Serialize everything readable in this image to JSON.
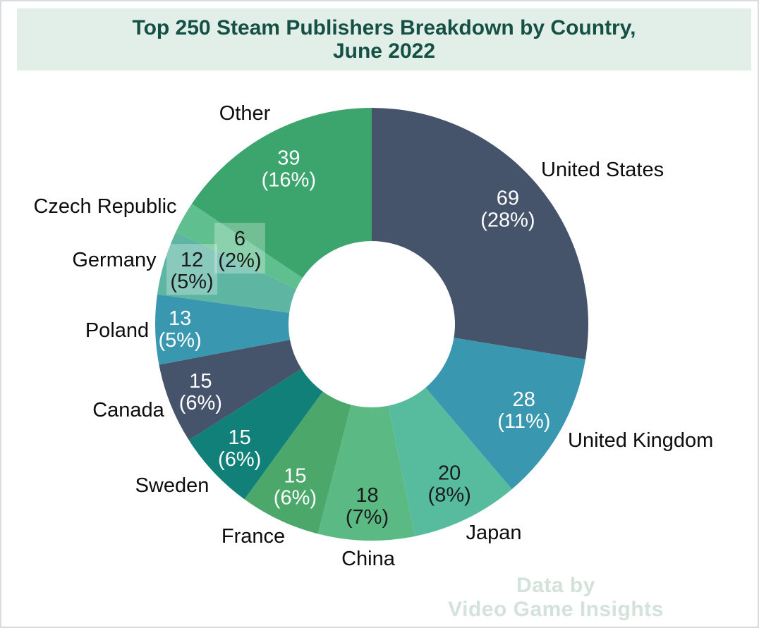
{
  "header": {
    "line1": "Top 250 Steam Publishers Breakdown by Country,",
    "line2": "June 2022",
    "bg_color": "#e2efe9",
    "text_color": "#155045"
  },
  "watermark": {
    "line1": "Data by",
    "line2": "Video Game Insights",
    "color": "#d3e2da"
  },
  "chart_data": {
    "type": "pie",
    "subtype": "donut",
    "title": "Top 250 Steam Publishers Breakdown by Country, June 2022",
    "total": 250,
    "start_angle_deg": 0,
    "direction": "clockwise",
    "legend_position": "outside-labels",
    "slices": [
      {
        "label": "United States",
        "value": 69,
        "pct": 28,
        "color": "#45536b",
        "value_text_color": "#ffffff"
      },
      {
        "label": "United Kingdom",
        "value": 28,
        "pct": 11,
        "color": "#3a97b0",
        "value_text_color": "#ffffff"
      },
      {
        "label": "Japan",
        "value": 20,
        "pct": 8,
        "color": "#56bc9d",
        "value_text_color": "#1a1a1a"
      },
      {
        "label": "China",
        "value": 18,
        "pct": 7,
        "color": "#5bba84",
        "value_text_color": "#1a1a1a"
      },
      {
        "label": "France",
        "value": 15,
        "pct": 6,
        "color": "#4ca76b",
        "value_text_color": "#ffffff"
      },
      {
        "label": "Sweden",
        "value": 15,
        "pct": 6,
        "color": "#108078",
        "value_text_color": "#ffffff"
      },
      {
        "label": "Canada",
        "value": 15,
        "pct": 6,
        "color": "#45536b",
        "value_text_color": "#ffffff"
      },
      {
        "label": "Poland",
        "value": 13,
        "pct": 5,
        "color": "#3a97b0",
        "value_text_color": "#ffffff"
      },
      {
        "label": "Germany",
        "value": 12,
        "pct": 5,
        "color": "#5eb6a2",
        "value_text_color": "#1a1a1a",
        "label_bg": true
      },
      {
        "label": "Czech Republic",
        "value": 6,
        "pct": 2,
        "color": "#60bf8f",
        "value_text_color": "#1a1a1a",
        "label_bg": true
      },
      {
        "label": "Other",
        "value": 39,
        "pct": 16,
        "color": "#3ca56d",
        "value_text_color": "#ffffff"
      }
    ]
  }
}
